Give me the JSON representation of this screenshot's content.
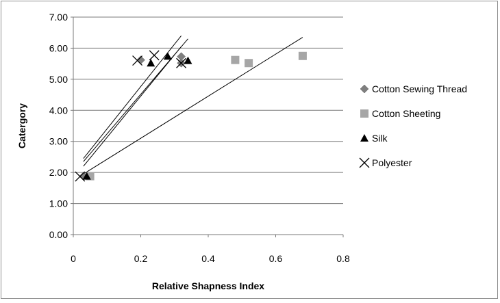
{
  "chart_data": {
    "type": "scatter",
    "xlabel": "Relative Shapness Index",
    "ylabel": "Catergory",
    "xlim": [
      0,
      0.8
    ],
    "ylim": [
      0,
      7
    ],
    "x_ticks": [
      "0",
      "0.2",
      "0.4",
      "0.6",
      "0.8"
    ],
    "y_ticks": [
      "0.00",
      "1.00",
      "2.00",
      "3.00",
      "4.00",
      "5.00",
      "6.00",
      "7.00"
    ],
    "grid": "horizontal",
    "legend_position": "right",
    "series": [
      {
        "name": "Cotton Sewing Thread",
        "marker": "diamond",
        "color": "#7f7f7f",
        "points": [
          [
            0.03,
            1.88
          ],
          [
            0.2,
            5.62
          ],
          [
            0.32,
            5.52
          ],
          [
            0.32,
            5.73
          ]
        ]
      },
      {
        "name": "Cotton Sheeting",
        "marker": "square",
        "color": "#a6a6a6",
        "points": [
          [
            0.05,
            1.88
          ],
          [
            0.48,
            5.62
          ],
          [
            0.52,
            5.52
          ],
          [
            0.68,
            5.75
          ]
        ]
      },
      {
        "name": "Silk",
        "marker": "triangle",
        "color": "#000000",
        "points": [
          [
            0.04,
            1.88
          ],
          [
            0.23,
            5.52
          ],
          [
            0.28,
            5.74
          ],
          [
            0.34,
            5.6
          ]
        ]
      },
      {
        "name": "Polyester",
        "marker": "x",
        "color": "#000000",
        "points": [
          [
            0.02,
            1.87
          ],
          [
            0.19,
            5.6
          ],
          [
            0.24,
            5.77
          ],
          [
            0.32,
            5.52
          ]
        ]
      }
    ],
    "trendlines": [
      {
        "x": [
          0.03,
          0.32
        ],
        "y": [
          2.45,
          6.4
        ]
      },
      {
        "x": [
          0.03,
          0.34
        ],
        "y": [
          2.35,
          6.3
        ]
      },
      {
        "x": [
          0.03,
          0.32
        ],
        "y": [
          2.2,
          6.05
        ]
      },
      {
        "x": [
          0.03,
          0.68
        ],
        "y": [
          1.95,
          6.35
        ]
      }
    ]
  }
}
